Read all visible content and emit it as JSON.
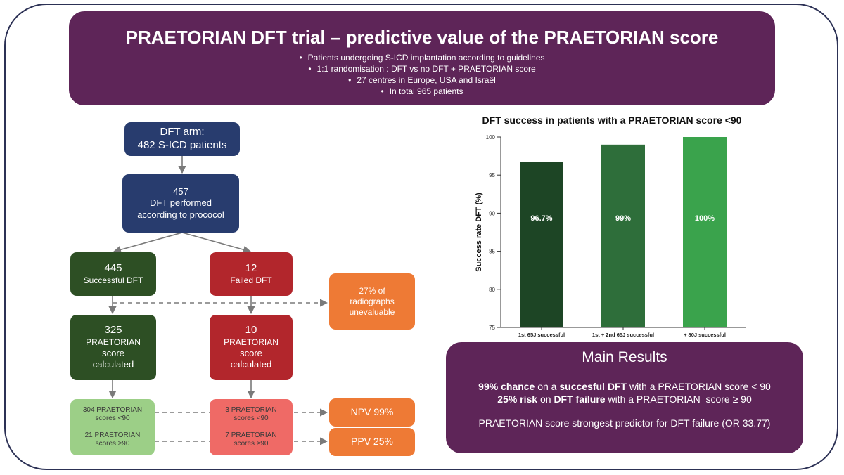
{
  "header": {
    "title": "PRAETORIAN DFT trial – predictive value of the PRAETORIAN score",
    "bullets": [
      "Patients undergoing S-ICD implantation according to guidelines",
      "1:1 randomisation : DFT vs no DFT + PRAETORIAN score",
      "27 centres in Europe, USA and Israël",
      "In total 965 patients"
    ]
  },
  "flow": {
    "dft_arm": {
      "line1": "DFT arm:",
      "line2": "482 S-ICD patients"
    },
    "performed": {
      "count": "457",
      "line1": "DFT performed",
      "line2": "according to prococol"
    },
    "successful": {
      "count": "445",
      "label": "Successful DFT"
    },
    "failed": {
      "count": "12",
      "label": "Failed DFT"
    },
    "unevaluable": {
      "line1": "27% of",
      "line2": "radiographs",
      "line3": "unevaluable"
    },
    "score_success": {
      "count": "325",
      "line1": "PRAETORIAN",
      "line2": "score",
      "line3": "calculated"
    },
    "score_failed": {
      "count": "10",
      "line1": "PRAETORIAN",
      "line2": "score",
      "line3": "calculated"
    },
    "succ_lt90": {
      "line1": "304 PRAETORIAN",
      "line2": "scores <90"
    },
    "succ_ge90": {
      "line1": "21 PRAETORIAN",
      "line2": "scores ≥90"
    },
    "fail_lt90": {
      "line1": "3 PRAETORIAN",
      "line2": "scores <90"
    },
    "fail_ge90": {
      "line1": "7 PRAETORIAN",
      "line2": "scores ≥90"
    },
    "npv": "NPV 99%",
    "ppv": "PPV 25%"
  },
  "chart_data": {
    "type": "bar",
    "title": "DFT success in patients with a PRAETORIAN score <90",
    "categories": [
      "1st 65J successful",
      "1st + 2nd 65J successful",
      "+ 80J successful"
    ],
    "values": [
      96.7,
      99,
      100
    ],
    "data_labels": [
      "96.7%",
      "99%",
      "100%"
    ],
    "ylabel": "Success rate DFT (%)",
    "xlabel": "",
    "ylim": [
      75,
      100
    ],
    "yticks": [
      75,
      80,
      85,
      90,
      95,
      100
    ],
    "colors": [
      "#1d4525",
      "#2e6e3a",
      "#3aa34c"
    ]
  },
  "results": {
    "title": "Main Results",
    "line1_bold1": "99% chance",
    "line1_mid": " on a ",
    "line1_bold2": "succesful DFT",
    "line1_end": " with a PRAETORIAN score < 90",
    "line2_bold1": "25% risk",
    "line2_mid": " on ",
    "line2_bold2": "DFT failure",
    "line2_end": " with a PRAETORIAN  score ≥ 90",
    "line3": "PRAETORIAN score strongest predictor for DFT failure (OR 33.77)"
  }
}
